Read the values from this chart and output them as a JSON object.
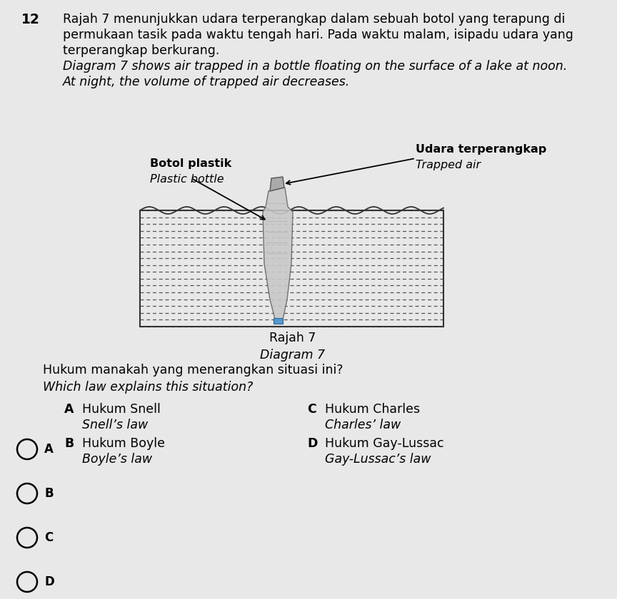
{
  "bg_color": "#e8e8e8",
  "question_number": "12",
  "q_line1": "Rajah 7 menunjukkan udara terperangkap dalam sebuah botol yang terapung di",
  "q_line2": "permukaan tasik pada waktu tengah hari. Pada waktu malam, isipadu udara yang",
  "q_line3": "terperangkap berkurang.",
  "q_line4": "Diagram 7 shows air trapped in a bottle floating on the surface of a lake at noon.",
  "q_line5": "At night, the volume of trapped air decreases.",
  "label_bottle_ms": "Botol plastik",
  "label_bottle_en": "Plastic bottle",
  "label_air_ms": "Udara terperangkap",
  "label_air_en": "Trapped air",
  "caption_ms": "Rajah 7",
  "caption_en": "Diagram 7",
  "question_ms": "Hukum manakah yang menerangkan situasi ini?",
  "question_en": "Which law explains this situation?",
  "A_ms": "Hukum Snell",
  "A_en": "Snell’s law",
  "B_ms": "Hukum Boyle",
  "B_en": "Boyle’s law",
  "C_ms": "Hukum Charles",
  "C_en": "Charles’ law",
  "D_ms": "Hukum Gay-Lussac",
  "D_en": "Gay-Lussac’s law",
  "text_color": "#000000",
  "water_dash_color": "#555555",
  "water_border_color": "#333333",
  "bottle_face_color": "#c8c8c8",
  "bottle_edge_color": "#666666",
  "wave_color": "#333333",
  "arrow_color": "#000000",
  "circle_color": "#000000",
  "font_size_main": 12.5,
  "font_size_opts": 12.5,
  "font_size_num": 13.5
}
